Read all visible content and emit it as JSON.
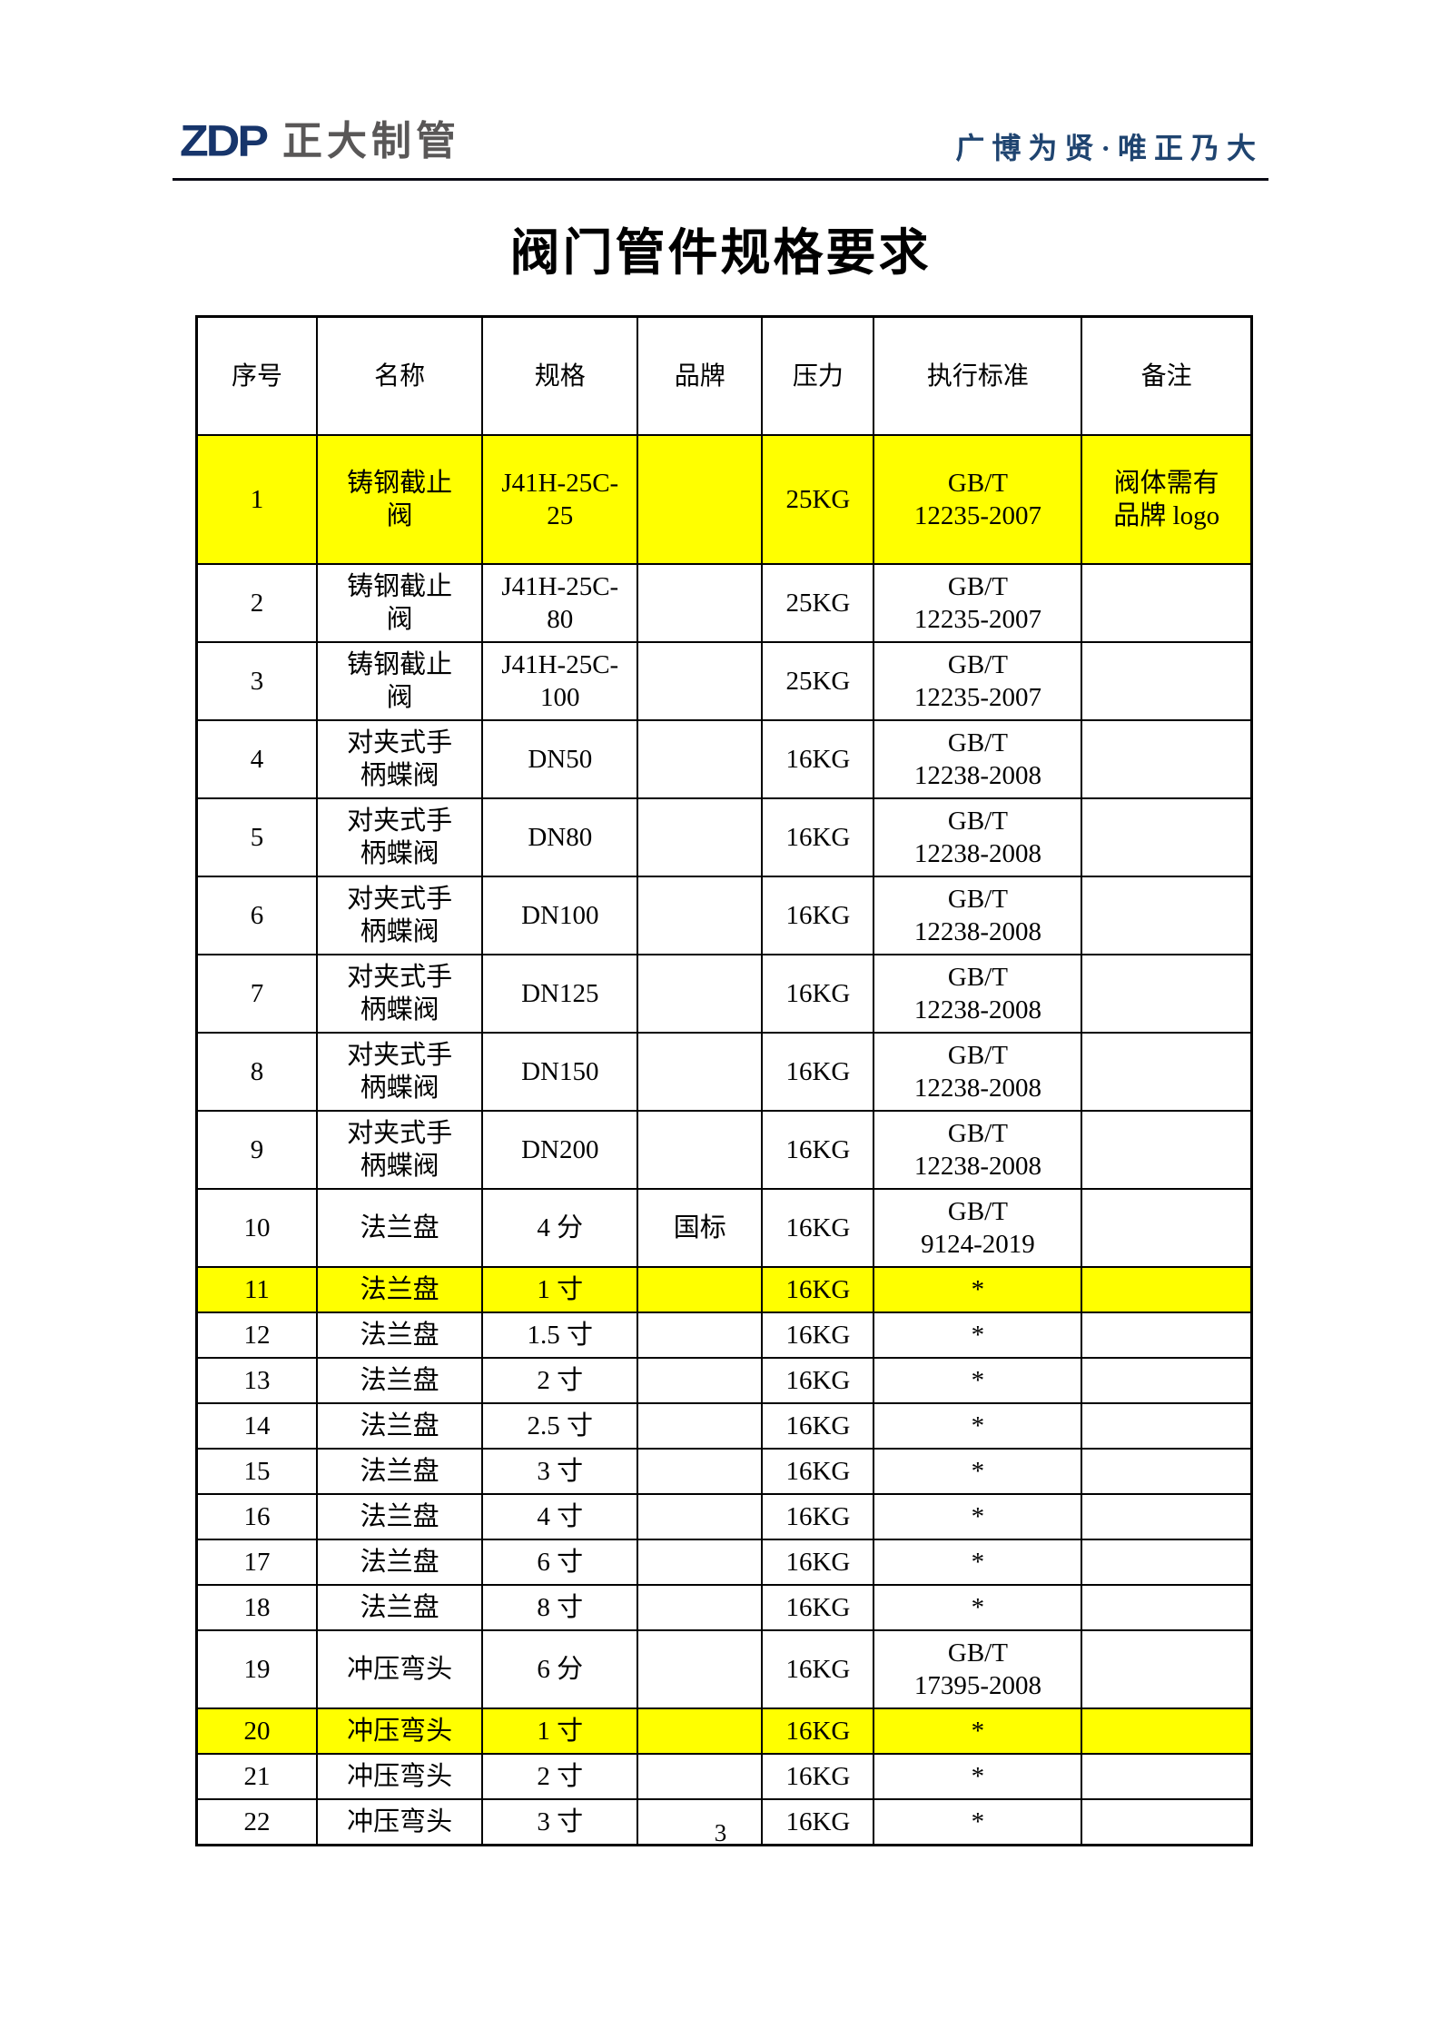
{
  "header": {
    "logo_text": "ZDP",
    "logo_company": "正大制管",
    "slogan": "广博为贤·唯正乃大"
  },
  "title": "阀门管件规格要求",
  "colors": {
    "highlight_yellow": "#FFFF00",
    "logo_blue": "#17356B",
    "logo_gray": "#595757",
    "slogan_blue": "#1F4470"
  },
  "table": {
    "columns": [
      "序号",
      "名称",
      "规格",
      "品牌",
      "压力",
      "执行标准",
      "备注"
    ],
    "rows": [
      {
        "no": "1",
        "name": "铸钢截止\n阀",
        "spec": "J41H-25C-\n25",
        "brand": "",
        "pressure": "25KG",
        "standard": "GB/T\n12235-2007",
        "remark": "阀体需有\n品牌 logo",
        "highlight": true
      },
      {
        "no": "2",
        "name": "铸钢截止\n阀",
        "spec": "J41H-25C-\n80",
        "brand": "",
        "pressure": "25KG",
        "standard": "GB/T\n12235-2007",
        "remark": "",
        "highlight": false
      },
      {
        "no": "3",
        "name": "铸钢截止\n阀",
        "spec": "J41H-25C-\n100",
        "brand": "",
        "pressure": "25KG",
        "standard": "GB/T\n12235-2007",
        "remark": "",
        "highlight": false
      },
      {
        "no": "4",
        "name": "对夹式手\n柄蝶阀",
        "spec": "DN50",
        "brand": "",
        "pressure": "16KG",
        "standard": "GB/T\n12238-2008",
        "remark": "",
        "highlight": false
      },
      {
        "no": "5",
        "name": "对夹式手\n柄蝶阀",
        "spec": "DN80",
        "brand": "",
        "pressure": "16KG",
        "standard": "GB/T\n12238-2008",
        "remark": "",
        "highlight": false
      },
      {
        "no": "6",
        "name": "对夹式手\n柄蝶阀",
        "spec": "DN100",
        "brand": "",
        "pressure": "16KG",
        "standard": "GB/T\n12238-2008",
        "remark": "",
        "highlight": false
      },
      {
        "no": "7",
        "name": "对夹式手\n柄蝶阀",
        "spec": "DN125",
        "brand": "",
        "pressure": "16KG",
        "standard": "GB/T\n12238-2008",
        "remark": "",
        "highlight": false
      },
      {
        "no": "8",
        "name": "对夹式手\n柄蝶阀",
        "spec": "DN150",
        "brand": "",
        "pressure": "16KG",
        "standard": "GB/T\n12238-2008",
        "remark": "",
        "highlight": false
      },
      {
        "no": "9",
        "name": "对夹式手\n柄蝶阀",
        "spec": "DN200",
        "brand": "",
        "pressure": "16KG",
        "standard": "GB/T\n12238-2008",
        "remark": "",
        "highlight": false
      },
      {
        "no": "10",
        "name": "法兰盘",
        "spec": "4 分",
        "brand": "国标",
        "pressure": "16KG",
        "standard": "GB/T\n9124-2019",
        "remark": "",
        "highlight": false
      },
      {
        "no": "11",
        "name": "法兰盘",
        "spec": "1 寸",
        "brand": "",
        "pressure": "16KG",
        "standard": "*",
        "remark": "",
        "highlight": true
      },
      {
        "no": "12",
        "name": "法兰盘",
        "spec": "1.5 寸",
        "brand": "",
        "pressure": "16KG",
        "standard": "*",
        "remark": "",
        "highlight": false
      },
      {
        "no": "13",
        "name": "法兰盘",
        "spec": "2 寸",
        "brand": "",
        "pressure": "16KG",
        "standard": "*",
        "remark": "",
        "highlight": false
      },
      {
        "no": "14",
        "name": "法兰盘",
        "spec": "2.5 寸",
        "brand": "",
        "pressure": "16KG",
        "standard": "*",
        "remark": "",
        "highlight": false
      },
      {
        "no": "15",
        "name": "法兰盘",
        "spec": "3 寸",
        "brand": "",
        "pressure": "16KG",
        "standard": "*",
        "remark": "",
        "highlight": false
      },
      {
        "no": "16",
        "name": "法兰盘",
        "spec": "4 寸",
        "brand": "",
        "pressure": "16KG",
        "standard": "*",
        "remark": "",
        "highlight": false
      },
      {
        "no": "17",
        "name": "法兰盘",
        "spec": "6 寸",
        "brand": "",
        "pressure": "16KG",
        "standard": "*",
        "remark": "",
        "highlight": false
      },
      {
        "no": "18",
        "name": "法兰盘",
        "spec": "8 寸",
        "brand": "",
        "pressure": "16KG",
        "standard": "*",
        "remark": "",
        "highlight": false
      },
      {
        "no": "19",
        "name": "冲压弯头",
        "spec": "6 分",
        "brand": "",
        "pressure": "16KG",
        "standard": "GB/T\n17395-2008",
        "remark": "",
        "highlight": false
      },
      {
        "no": "20",
        "name": "冲压弯头",
        "spec": "1 寸",
        "brand": "",
        "pressure": "16KG",
        "standard": "*",
        "remark": "",
        "highlight": true
      },
      {
        "no": "21",
        "name": "冲压弯头",
        "spec": "2 寸",
        "brand": "",
        "pressure": "16KG",
        "standard": "*",
        "remark": "",
        "highlight": false
      },
      {
        "no": "22",
        "name": "冲压弯头",
        "spec": "3 寸",
        "brand": "",
        "pressure": "16KG",
        "standard": "*",
        "remark": "",
        "highlight": false
      }
    ]
  },
  "footer": {
    "page_number": "3"
  }
}
